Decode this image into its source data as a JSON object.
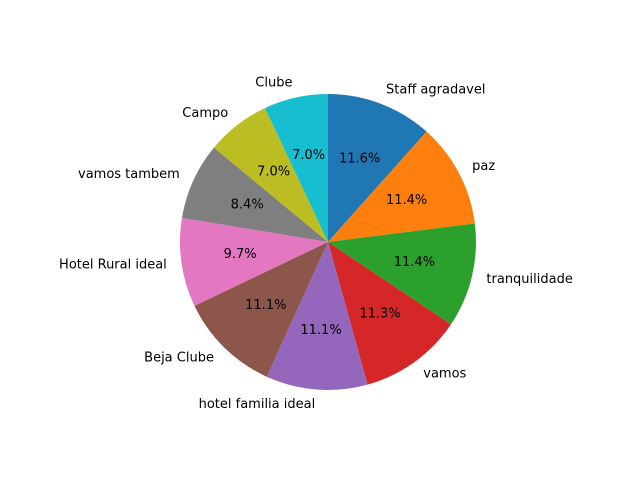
{
  "chart_data": {
    "type": "pie",
    "title": "",
    "startangle": 90,
    "counterclock": false,
    "autopct": "%1.1f%%",
    "legend": false,
    "slices": [
      {
        "label": "Staff agradavel",
        "value": 11.6,
        "pct_text": "11.6%",
        "color": "#1f77b4"
      },
      {
        "label": "paz",
        "value": 11.4,
        "pct_text": "11.4%",
        "color": "#ff7f0e"
      },
      {
        "label": "tranquilidade",
        "value": 11.4,
        "pct_text": "11.4%",
        "color": "#2ca02c"
      },
      {
        "label": "vamos",
        "value": 11.3,
        "pct_text": "11.3%",
        "color": "#d62728"
      },
      {
        "label": "hotel familia ideal",
        "value": 11.1,
        "pct_text": "11.1%",
        "color": "#9467bd"
      },
      {
        "label": "Beja Clube",
        "value": 11.1,
        "pct_text": "11.1%",
        "color": "#8c564b"
      },
      {
        "label": "Hotel Rural ideal",
        "value": 9.7,
        "pct_text": "9.7%",
        "color": "#e377c2"
      },
      {
        "label": "vamos tambem",
        "value": 8.4,
        "pct_text": "8.4%",
        "color": "#7f7f7f"
      },
      {
        "label": "Campo",
        "value": 7.0,
        "pct_text": "7.0%",
        "color": "#bcbd22"
      },
      {
        "label": "Clube",
        "value": 7.0,
        "pct_text": "7.0%",
        "color": "#17becf"
      }
    ]
  }
}
